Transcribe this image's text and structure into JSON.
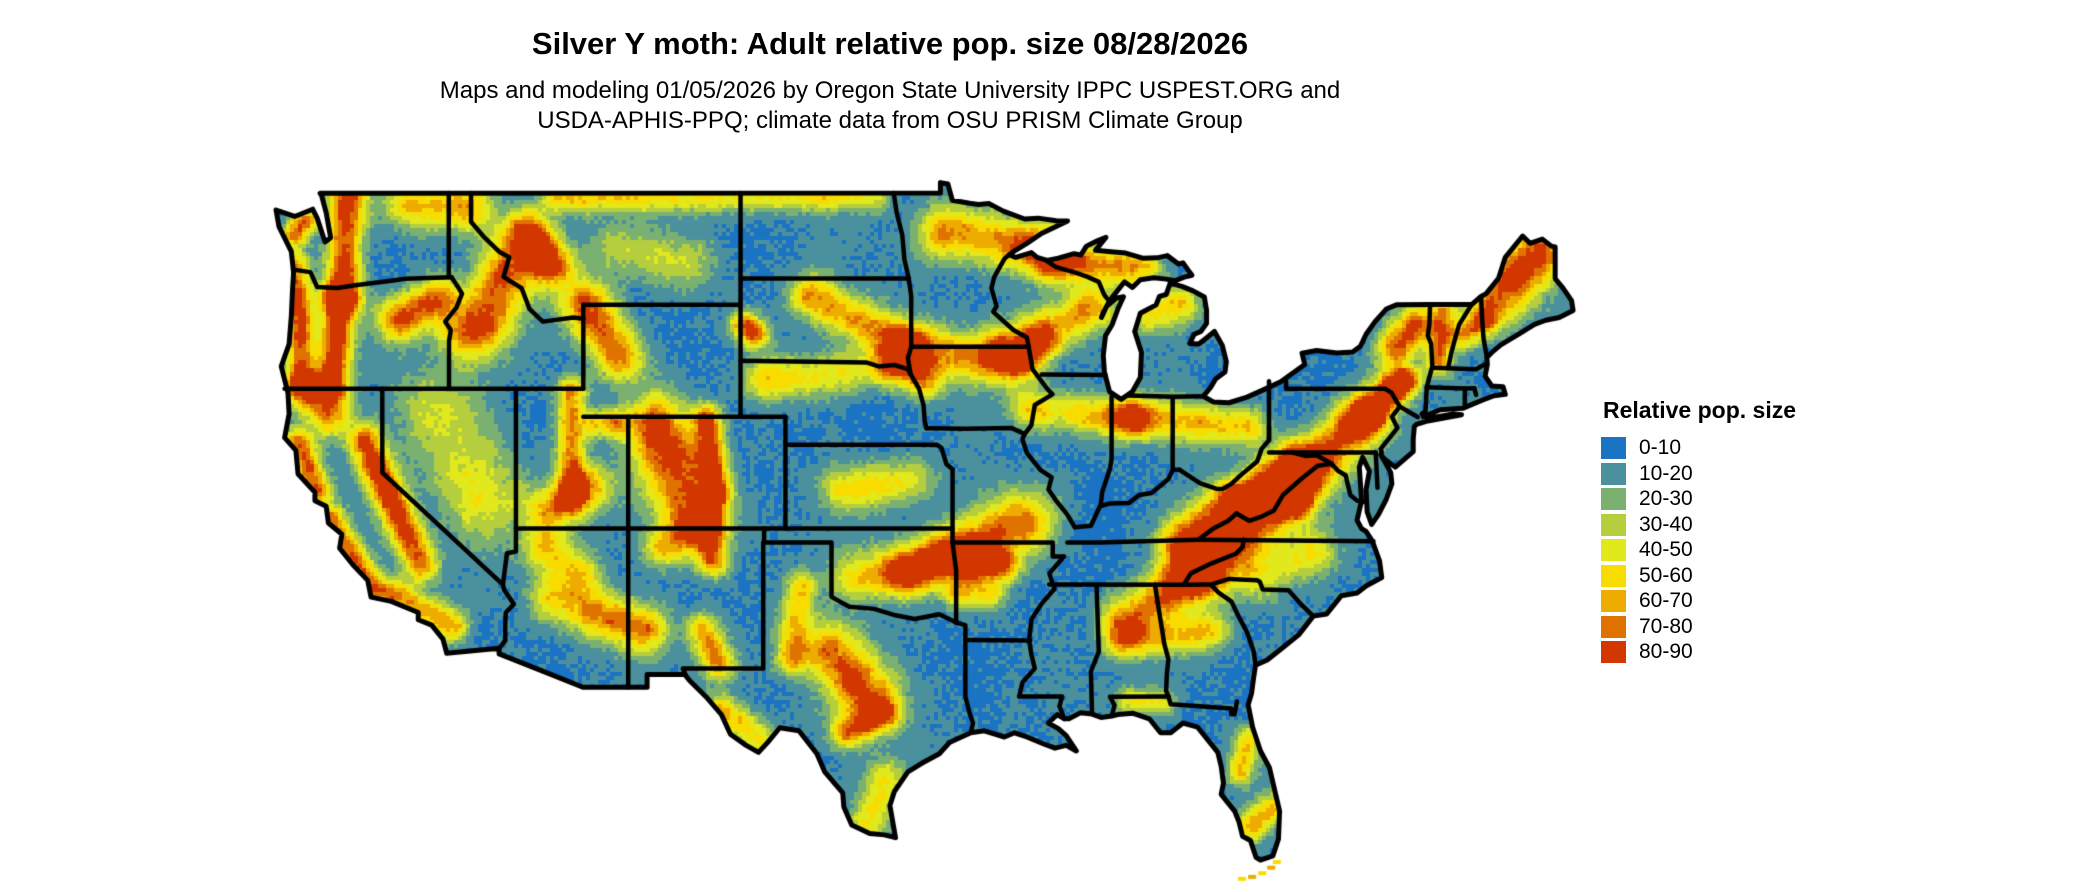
{
  "header": {
    "title": "Silver Y moth: Adult relative pop. size 08/28/2026",
    "subtitle_lines": [
      "Maps and modeling 01/05/2026 by Oregon State University IPPC USPEST.ORG and",
      "USDA-APHIS-PPQ; climate data from OSU PRISM Climate Group"
    ]
  },
  "legend": {
    "title": "Relative pop. size",
    "items": [
      {
        "label": "0-10",
        "color": "#1b73c4"
      },
      {
        "label": "10-20",
        "color": "#4a919d"
      },
      {
        "label": "20-30",
        "color": "#7ab070"
      },
      {
        "label": "30-40",
        "color": "#b4ce3e"
      },
      {
        "label": "40-50",
        "color": "#e1e81c"
      },
      {
        "label": "50-60",
        "color": "#f8dc00"
      },
      {
        "label": "60-70",
        "color": "#eeab00"
      },
      {
        "label": "70-80",
        "color": "#e07300"
      },
      {
        "label": "80-90",
        "color": "#d33700"
      }
    ]
  },
  "map": {
    "region": "Contiguous United States",
    "water_color": "#ffffff",
    "border_color": "#000000"
  }
}
